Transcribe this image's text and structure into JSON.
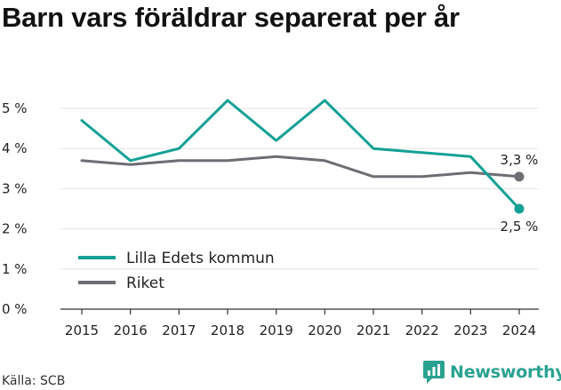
{
  "title": "Barn vars föräldrar separerat per år",
  "source": "Källa: SCB",
  "brand": {
    "name": "Newsworthy",
    "icon": "newsworthy-logo-icon",
    "color": "#2aa291"
  },
  "chart_data": {
    "type": "line",
    "title": "Barn vars föräldrar separerat per år",
    "categories": [
      "2015",
      "2016",
      "2017",
      "2018",
      "2019",
      "2020",
      "2021",
      "2022",
      "2023",
      "2024"
    ],
    "ylim": [
      0,
      5
    ],
    "yticks": [
      0,
      1,
      2,
      3,
      4,
      5
    ],
    "ytick_labels": [
      "0 %",
      "1 %",
      "2 %",
      "3 %",
      "4 %",
      "5 %"
    ],
    "grid": true,
    "legend_position": "lower-left",
    "series": [
      {
        "name": "Lilla Edets kommun",
        "color": "#14a195",
        "values": [
          4.7,
          3.7,
          4.0,
          5.2,
          4.2,
          5.2,
          4.0,
          3.9,
          3.8,
          2.5
        ],
        "end_label": "2,5 %"
      },
      {
        "name": "Riket",
        "color": "#6e6d74",
        "values": [
          3.7,
          3.6,
          3.7,
          3.7,
          3.8,
          3.7,
          3.3,
          3.3,
          3.4,
          3.3
        ],
        "end_label": "3,3 %"
      }
    ]
  }
}
